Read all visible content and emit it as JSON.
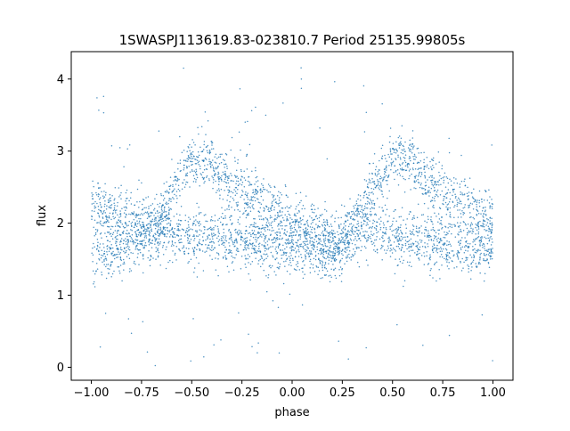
{
  "chart_data": {
    "type": "scatter",
    "title": "1SWASPJ113619.83-023810.7 Period 25135.99805s",
    "xlabel": "phase",
    "ylabel": "flux",
    "xlim": [
      -1.1,
      1.1
    ],
    "ylim": [
      -0.18,
      4.38
    ],
    "x_ticks": [
      -1.0,
      -0.75,
      -0.5,
      -0.25,
      0.0,
      0.25,
      0.5,
      0.75,
      1.0
    ],
    "x_tick_labels": [
      "−1.00",
      "−0.75",
      "−0.50",
      "−0.25",
      "0.00",
      "0.25",
      "0.50",
      "0.75",
      "1.00"
    ],
    "y_ticks": [
      0,
      1,
      2,
      3,
      4
    ],
    "y_tick_labels": [
      "0",
      "1",
      "2",
      "3",
      "4"
    ],
    "grid": false,
    "legend": "none",
    "marker_color": "#1f77b4",
    "series": [
      {
        "x": [
          -1.0,
          -0.9,
          -0.8,
          -0.75,
          -0.7,
          -0.65,
          -0.6,
          -0.55,
          -0.5,
          -0.45,
          -0.4,
          -0.35,
          -0.3,
          -0.25,
          -0.2,
          -0.15,
          -0.1,
          -0.05,
          0.0,
          0.05,
          0.1,
          0.15,
          0.2,
          0.25,
          0.3,
          0.35,
          0.4,
          0.45,
          0.5,
          0.55,
          0.6,
          0.65,
          0.7,
          0.75,
          0.8,
          0.85,
          0.9,
          0.95,
          1.0
        ],
        "y_upper_branch": [
          2.3,
          2.18,
          2.05,
          1.97,
          1.95,
          2.15,
          2.45,
          2.7,
          2.85,
          2.9,
          2.8,
          2.65,
          2.55,
          2.45,
          2.38,
          2.3,
          2.2,
          2.1,
          2.03,
          1.95,
          1.88,
          1.8,
          1.75,
          1.72,
          1.95,
          2.15,
          2.45,
          2.7,
          2.85,
          2.9,
          2.8,
          2.65,
          2.55,
          2.45,
          2.38,
          2.3,
          2.2,
          2.1,
          2.03
        ],
        "y_lower_branch": [
          1.6,
          1.62,
          1.68,
          1.75,
          1.9,
          1.92,
          1.88,
          1.82,
          1.8,
          1.78,
          1.78,
          1.77,
          1.75,
          1.73,
          1.72,
          1.72,
          1.7,
          1.68,
          1.68,
          1.66,
          1.65,
          1.62,
          1.6,
          1.7,
          1.9,
          1.92,
          1.88,
          1.82,
          1.8,
          1.78,
          1.78,
          1.77,
          1.75,
          1.73,
          1.72,
          1.72,
          1.7,
          1.68,
          1.66
        ],
        "scatter_spread": 0.35,
        "outlier_range": [
          0.0,
          4.2
        ]
      }
    ]
  }
}
